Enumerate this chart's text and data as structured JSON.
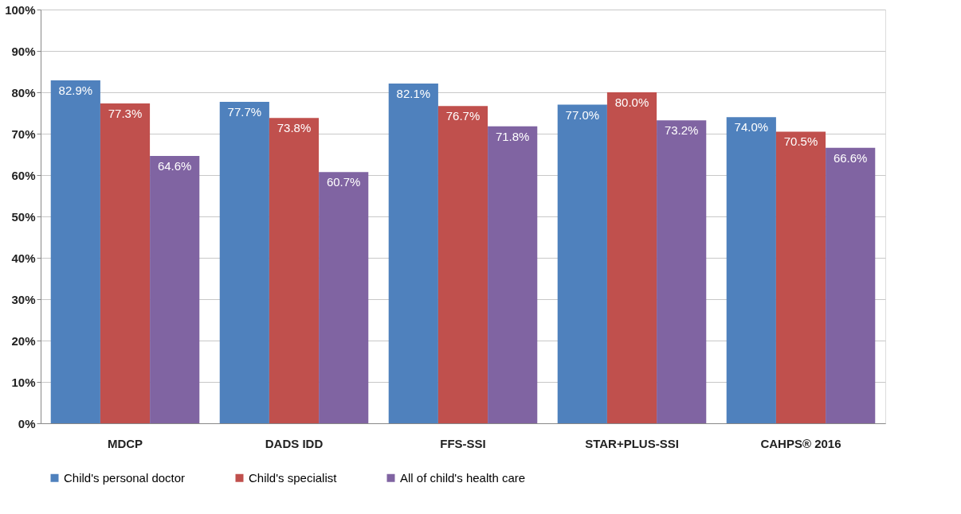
{
  "chart_data": {
    "type": "bar",
    "categories": [
      "MDCP",
      "DADS IDD",
      "FFS-SSI",
      "STAR+PLUS-SSI",
      "CAHPS® 2016"
    ],
    "series": [
      {
        "name": "Child's personal doctor",
        "color": "#4f81bd",
        "values": [
          82.9,
          77.7,
          82.1,
          77.0,
          74.0
        ],
        "value_labels": [
          "82.9%",
          "77.7%",
          "82.1%",
          "77.0%",
          "74.0%"
        ]
      },
      {
        "name": "Child's specialist",
        "color": "#c0504d",
        "values": [
          77.3,
          73.8,
          76.7,
          80.0,
          70.5
        ],
        "value_labels": [
          "77.3%",
          "73.8%",
          "76.7%",
          "80.0%",
          "70.5%"
        ]
      },
      {
        "name": "All of child's health care",
        "color": "#8064a2",
        "values": [
          64.6,
          60.7,
          71.8,
          73.2,
          66.6
        ],
        "value_labels": [
          "64.6%",
          "60.7%",
          "71.8%",
          "73.2%",
          "66.6%"
        ]
      }
    ],
    "ylim": [
      0,
      100
    ],
    "yticks": [
      {
        "value": 0,
        "label": "0%"
      },
      {
        "value": 10,
        "label": "10%"
      },
      {
        "value": 20,
        "label": "20%"
      },
      {
        "value": 30,
        "label": "30%"
      },
      {
        "value": 40,
        "label": "40%"
      },
      {
        "value": 50,
        "label": "50%"
      },
      {
        "value": 60,
        "label": "60%"
      },
      {
        "value": 70,
        "label": "70%"
      },
      {
        "value": 80,
        "label": "80%"
      },
      {
        "value": 90,
        "label": "90%"
      },
      {
        "value": 100,
        "label": "100%"
      }
    ],
    "grid": "y",
    "legend": "bottom"
  }
}
